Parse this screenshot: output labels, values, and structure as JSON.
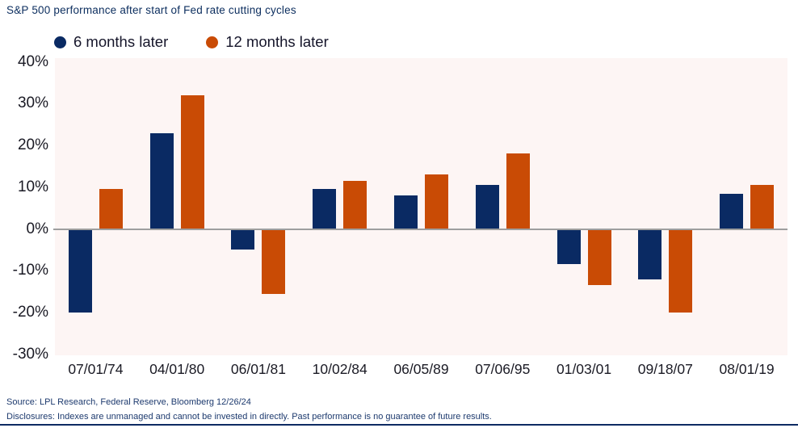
{
  "chart_data": {
    "type": "bar",
    "title": "S&P 500 performance after start of Fed rate cutting cycles",
    "categories": [
      "07/01/74",
      "04/01/80",
      "06/01/81",
      "10/02/84",
      "06/05/89",
      "07/06/95",
      "01/03/01",
      "09/18/07",
      "08/01/19"
    ],
    "series": [
      {
        "name": "6 months later",
        "color": "#0a2a63",
        "values": [
          -20,
          23,
          -5,
          9.5,
          8,
          10.5,
          -8.5,
          -12,
          8.5
        ]
      },
      {
        "name": "12 months later",
        "color": "#c94b05",
        "values": [
          9.5,
          32,
          -15.5,
          11.5,
          13,
          18,
          -13.5,
          -20,
          10.5
        ]
      }
    ],
    "xlabel": "",
    "ylabel": "",
    "ylim": [
      -30,
      40
    ],
    "ytick_step": 10,
    "ytick_suffix": "%",
    "legend_position": "top-left",
    "grid": false
  },
  "colors": {
    "plot_background": "#fdf5f4",
    "zero_line": "#9e9e9e",
    "bottom_rule": "#0d2a63",
    "title_text": "#0b2d5e",
    "axis_text": "#1a1a24",
    "footer_text": "#1d3a6e"
  },
  "footer": {
    "source": "Source: LPL Research, Federal Reserve, Bloomberg 12/26/24",
    "disclosures": "Disclosures: Indexes are unmanaged and cannot be invested in directly. Past performance is no guarantee of future results."
  }
}
